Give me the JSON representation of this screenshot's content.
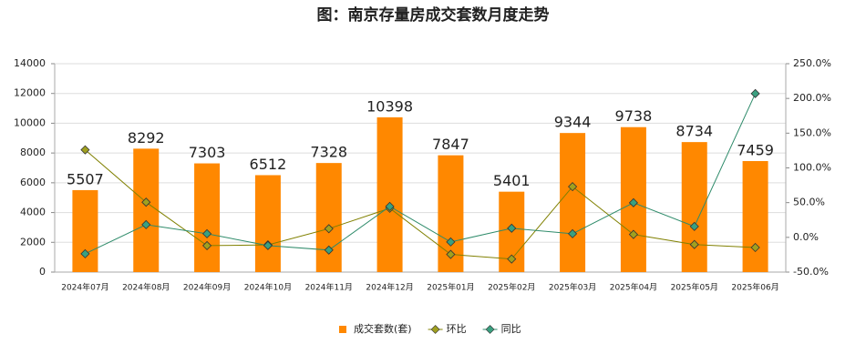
{
  "chart_data": {
    "type": "bar-line",
    "title": "图：南京存量房成交套数月度走势",
    "categories": [
      "2024年07月",
      "2024年08月",
      "2024年09月",
      "2024年10月",
      "2024年11月",
      "2024年12月",
      "2025年01月",
      "2025年02月",
      "2025年03月",
      "2025年04月",
      "2025年05月",
      "2025年06月"
    ],
    "series": [
      {
        "name": "成交套数(套)",
        "type": "bar",
        "color": "#ff8800",
        "values": [
          5507,
          8292,
          7303,
          6512,
          7328,
          10398,
          7847,
          5401,
          9344,
          9738,
          8734,
          7459
        ]
      },
      {
        "name": "环比",
        "type": "line",
        "axis": "y2",
        "color": "#808000",
        "marker_color": "#a0a020",
        "values": [
          126,
          50.6,
          -11.9,
          -10.8,
          12.5,
          41.9,
          -24.5,
          -31.2,
          73.0,
          4.2,
          -10.3,
          -14.6
        ]
      },
      {
        "name": "同比",
        "type": "line",
        "axis": "y2",
        "color": "#2e8b6a",
        "marker_color": "#3aa080",
        "values": [
          -23.6,
          18.3,
          5.2,
          -11.8,
          -18.3,
          44.5,
          -6.6,
          13.1,
          5.2,
          49.8,
          15.7,
          207
        ]
      }
    ],
    "ylim": [
      0,
      14000
    ],
    "yticks": [
      0,
      2000,
      4000,
      6000,
      8000,
      10000,
      12000,
      14000
    ],
    "y2lim": [
      -50,
      250
    ],
    "y2ticks": [
      {
        "value": -50,
        "label": "-50.0%"
      },
      {
        "value": 0,
        "label": "0.0%"
      },
      {
        "value": 50,
        "label": "50.0%"
      },
      {
        "value": 100,
        "label": "100.0%"
      },
      {
        "value": 150,
        "label": "150.0%"
      },
      {
        "value": 200,
        "label": "200.0%"
      },
      {
        "value": 250,
        "label": "250.0%"
      }
    ],
    "grid": true,
    "legend": "bottom"
  }
}
